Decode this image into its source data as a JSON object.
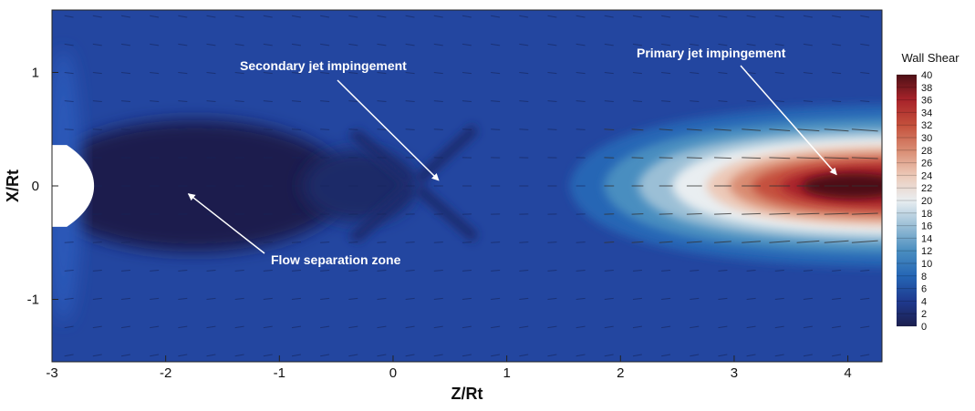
{
  "chart_data": {
    "type": "heatmap",
    "subtype": "contour with vector field",
    "xlabel": "Z/Rt",
    "ylabel": "X/Rt",
    "xlim": [
      -3,
      4.3
    ],
    "ylim": [
      -1.55,
      1.55
    ],
    "xticks": [
      "-3",
      "-2",
      "-1",
      "0",
      "1",
      "2",
      "3",
      "4"
    ],
    "yticks": [
      "1",
      "0",
      "-1"
    ],
    "colorbar": {
      "title": "Wall Shear",
      "min": 0,
      "max": 40,
      "ticks": [
        "40",
        "38",
        "36",
        "34",
        "32",
        "30",
        "28",
        "26",
        "24",
        "22",
        "20",
        "18",
        "16",
        "14",
        "12",
        "10",
        "8",
        "6",
        "4",
        "2",
        "0"
      ],
      "colors": {
        "0": "#1c1f4e",
        "4": "#1f3a8f",
        "8": "#2566b5",
        "12": "#4a8ec0",
        "16": "#9bbfd6",
        "20": "#e9eef1",
        "24": "#ecc9b8",
        "28": "#d98c72",
        "32": "#c4503c",
        "36": "#a8232a",
        "40": "#4d1016"
      }
    },
    "annotations": [
      {
        "text": "Secondary jet impingement",
        "target": [
          0.4,
          0.05
        ]
      },
      {
        "text": "Primary jet impingement",
        "target": [
          3.9,
          0.1
        ]
      },
      {
        "text": "Flow separation zone",
        "target": [
          -1.8,
          -0.07
        ]
      }
    ],
    "grid": false
  }
}
